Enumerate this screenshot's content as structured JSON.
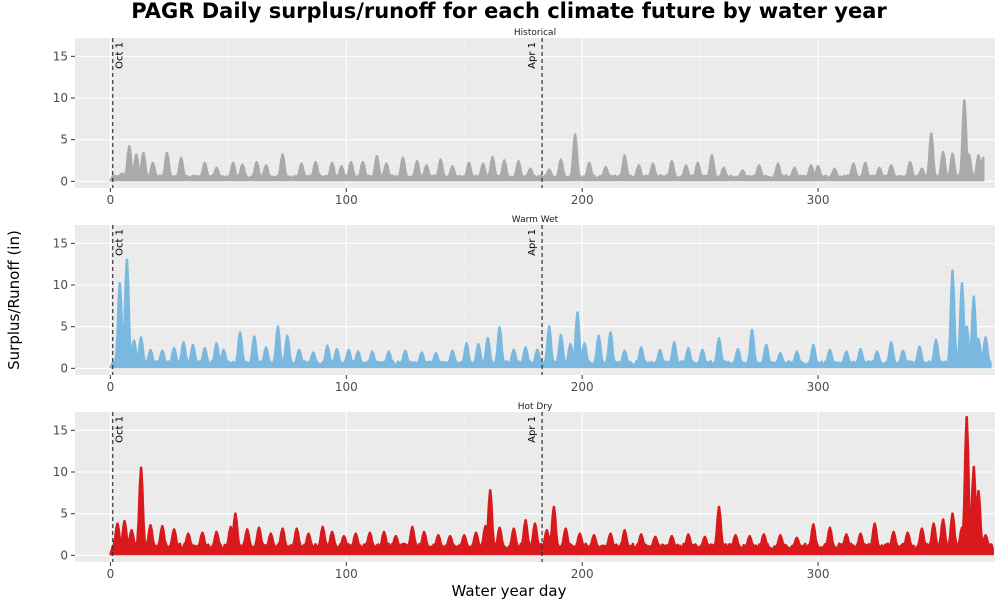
{
  "chart_data": {
    "type": "line",
    "title": "PAGR Daily surplus/runoff for each climate future by water year",
    "xlabel": "Water year day",
    "ylabel": "Surplus/Runoff (in)",
    "xlim": [
      -15,
      375
    ],
    "ylim": [
      -0.8,
      17.2
    ],
    "x_ticks": [
      0,
      100,
      200,
      300
    ],
    "y_ticks": [
      0,
      5,
      10,
      15
    ],
    "grid": true,
    "legend": "none",
    "vlines": [
      {
        "x": 1,
        "label": "Oct 1"
      },
      {
        "x": 183,
        "label": "Apr 1"
      }
    ],
    "panels": [
      {
        "name": "Historical",
        "color": "#aaaaaa",
        "baseline": 0.5,
        "peaks": [
          [
            5,
            0.9
          ],
          [
            8,
            4.2
          ],
          [
            11,
            3.2
          ],
          [
            14,
            3.4
          ],
          [
            18,
            2.2
          ],
          [
            24,
            3.4
          ],
          [
            30,
            2.8
          ],
          [
            40,
            2.2
          ],
          [
            45,
            1.6
          ],
          [
            52,
            2.2
          ],
          [
            56,
            2.0
          ],
          [
            62,
            2.3
          ],
          [
            66,
            1.9
          ],
          [
            73,
            3.2
          ],
          [
            81,
            2.1
          ],
          [
            87,
            2.3
          ],
          [
            94,
            2.2
          ],
          [
            98,
            1.8
          ],
          [
            102,
            2.3
          ],
          [
            107,
            2.3
          ],
          [
            113,
            3.0
          ],
          [
            117,
            2.1
          ],
          [
            124,
            2.8
          ],
          [
            130,
            2.4
          ],
          [
            134,
            1.9
          ],
          [
            140,
            2.6
          ],
          [
            145,
            1.8
          ],
          [
            152,
            2.2
          ],
          [
            158,
            2.1
          ],
          [
            162,
            2.9
          ],
          [
            167,
            2.5
          ],
          [
            173,
            2.4
          ],
          [
            178,
            1.5
          ],
          [
            186,
            1.4
          ],
          [
            191,
            2.6
          ],
          [
            197,
            5.6
          ],
          [
            203,
            2.2
          ],
          [
            210,
            1.7
          ],
          [
            218,
            3.1
          ],
          [
            224,
            1.9
          ],
          [
            230,
            2.1
          ],
          [
            238,
            2.4
          ],
          [
            244,
            1.9
          ],
          [
            249,
            2.2
          ],
          [
            255,
            3.1
          ],
          [
            260,
            1.6
          ],
          [
            268,
            1.3
          ],
          [
            275,
            1.9
          ],
          [
            283,
            2.1
          ],
          [
            290,
            1.6
          ],
          [
            297,
            1.9
          ],
          [
            300,
            1.8
          ],
          [
            307,
            1.5
          ],
          [
            315,
            2.1
          ],
          [
            320,
            2.2
          ],
          [
            326,
            1.6
          ],
          [
            331,
            1.9
          ],
          [
            339,
            2.3
          ],
          [
            344,
            1.5
          ],
          [
            348,
            5.7
          ],
          [
            353,
            3.5
          ],
          [
            357,
            3.3
          ],
          [
            362,
            9.7
          ],
          [
            364,
            3.2
          ],
          [
            368,
            3.1
          ],
          [
            370,
            2.8
          ]
        ]
      },
      {
        "name": "Warm Wet",
        "color": "#7ab8e0",
        "baseline": 0.6,
        "peaks": [
          [
            4,
            10.2
          ],
          [
            6,
            5.0
          ],
          [
            7,
            13.0
          ],
          [
            10,
            3.3
          ],
          [
            13,
            3.7
          ],
          [
            17,
            2.2
          ],
          [
            22,
            2.1
          ],
          [
            27,
            2.4
          ],
          [
            31,
            3.1
          ],
          [
            35,
            2.8
          ],
          [
            40,
            2.4
          ],
          [
            45,
            3.0
          ],
          [
            48,
            2.2
          ],
          [
            55,
            4.3
          ],
          [
            61,
            3.8
          ],
          [
            66,
            2.5
          ],
          [
            71,
            5.0
          ],
          [
            75,
            3.9
          ],
          [
            80,
            2.2
          ],
          [
            86,
            1.9
          ],
          [
            92,
            2.7
          ],
          [
            96,
            2.3
          ],
          [
            101,
            2.2
          ],
          [
            105,
            2.0
          ],
          [
            111,
            2.0
          ],
          [
            118,
            2.0
          ],
          [
            125,
            2.1
          ],
          [
            132,
            1.9
          ],
          [
            138,
            1.8
          ],
          [
            145,
            2.1
          ],
          [
            151,
            3.0
          ],
          [
            156,
            2.9
          ],
          [
            160,
            3.6
          ],
          [
            165,
            4.9
          ],
          [
            171,
            2.2
          ],
          [
            176,
            2.5
          ],
          [
            181,
            2.2
          ],
          [
            186,
            5.0
          ],
          [
            191,
            4.0
          ],
          [
            195,
            2.9
          ],
          [
            198,
            6.7
          ],
          [
            201,
            3.0
          ],
          [
            207,
            3.9
          ],
          [
            212,
            4.3
          ],
          [
            218,
            2.1
          ],
          [
            225,
            2.5
          ],
          [
            233,
            2.2
          ],
          [
            239,
            3.1
          ],
          [
            245,
            2.4
          ],
          [
            251,
            2.2
          ],
          [
            258,
            3.6
          ],
          [
            266,
            2.3
          ],
          [
            272,
            4.6
          ],
          [
            278,
            2.8
          ],
          [
            284,
            1.8
          ],
          [
            291,
            2.0
          ],
          [
            298,
            2.8
          ],
          [
            305,
            2.2
          ],
          [
            312,
            2.0
          ],
          [
            318,
            2.3
          ],
          [
            325,
            2.0
          ],
          [
            331,
            3.1
          ],
          [
            336,
            2.1
          ],
          [
            343,
            2.6
          ],
          [
            350,
            3.4
          ],
          [
            357,
            11.7
          ],
          [
            361,
            10.2
          ],
          [
            363,
            5.0
          ],
          [
            366,
            8.6
          ],
          [
            368,
            3.5
          ],
          [
            371,
            3.7
          ],
          [
            373,
            0.8
          ]
        ]
      },
      {
        "name": "Hot Dry",
        "color": "#d9191c",
        "baseline": 1.0,
        "peaks": [
          [
            3,
            3.8
          ],
          [
            6,
            4.1
          ],
          [
            9,
            3.0
          ],
          [
            13,
            10.5
          ],
          [
            17,
            3.6
          ],
          [
            22,
            3.5
          ],
          [
            27,
            3.1
          ],
          [
            33,
            2.6
          ],
          [
            39,
            2.7
          ],
          [
            45,
            2.8
          ],
          [
            51,
            3.4
          ],
          [
            53,
            5.0
          ],
          [
            58,
            3.1
          ],
          [
            63,
            3.3
          ],
          [
            68,
            2.6
          ],
          [
            73,
            3.2
          ],
          [
            79,
            3.2
          ],
          [
            84,
            2.6
          ],
          [
            90,
            3.4
          ],
          [
            94,
            2.8
          ],
          [
            99,
            2.3
          ],
          [
            104,
            2.6
          ],
          [
            110,
            2.7
          ],
          [
            116,
            2.8
          ],
          [
            121,
            2.3
          ],
          [
            128,
            3.4
          ],
          [
            133,
            2.8
          ],
          [
            139,
            2.4
          ],
          [
            144,
            2.3
          ],
          [
            150,
            2.4
          ],
          [
            155,
            2.7
          ],
          [
            159,
            3.5
          ],
          [
            161,
            7.8
          ],
          [
            165,
            3.3
          ],
          [
            171,
            3.2
          ],
          [
            176,
            4.2
          ],
          [
            180,
            3.8
          ],
          [
            185,
            3.0
          ],
          [
            188,
            5.8
          ],
          [
            193,
            3.2
          ],
          [
            199,
            2.6
          ],
          [
            205,
            2.4
          ],
          [
            212,
            2.6
          ],
          [
            218,
            3.0
          ],
          [
            225,
            2.5
          ],
          [
            231,
            2.2
          ],
          [
            238,
            2.3
          ],
          [
            245,
            2.5
          ],
          [
            252,
            2.2
          ],
          [
            258,
            5.8
          ],
          [
            265,
            2.4
          ],
          [
            271,
            2.3
          ],
          [
            277,
            2.5
          ],
          [
            284,
            2.4
          ],
          [
            291,
            2.1
          ],
          [
            298,
            3.7
          ],
          [
            305,
            3.3
          ],
          [
            312,
            2.5
          ],
          [
            318,
            2.6
          ],
          [
            324,
            3.8
          ],
          [
            332,
            2.8
          ],
          [
            338,
            2.7
          ],
          [
            344,
            3.2
          ],
          [
            349,
            3.8
          ],
          [
            353,
            4.3
          ],
          [
            357,
            5.0
          ],
          [
            361,
            3.3
          ],
          [
            363,
            16.6
          ],
          [
            366,
            10.6
          ],
          [
            368,
            7.7
          ],
          [
            371,
            2.4
          ],
          [
            374,
            0.8
          ]
        ]
      }
    ]
  }
}
